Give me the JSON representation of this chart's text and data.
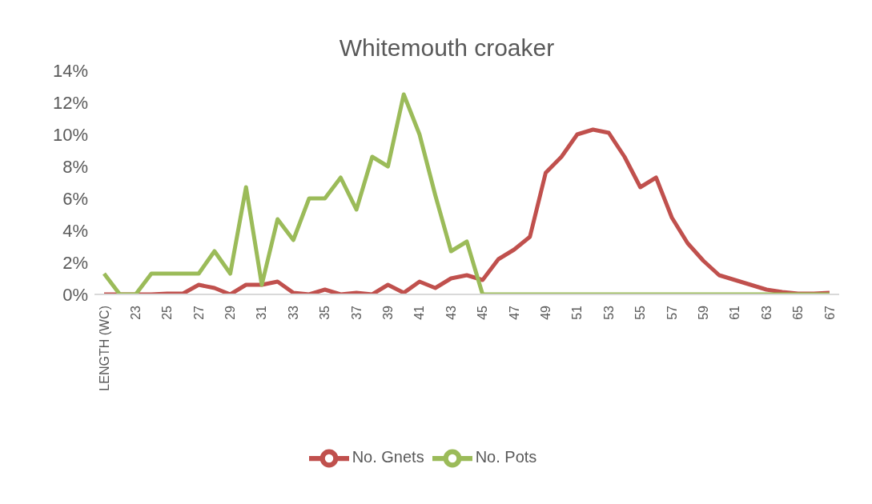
{
  "chart_data": {
    "type": "line",
    "title": "Whitemouth croaker",
    "categories": [
      "LENGTH (WC)",
      null,
      "23",
      null,
      "25",
      null,
      "27",
      null,
      "29",
      null,
      "31",
      null,
      "33",
      null,
      "35",
      null,
      "37",
      null,
      "39",
      null,
      "41",
      null,
      "43",
      null,
      "45",
      null,
      "47",
      null,
      "49",
      null,
      "51",
      null,
      "53",
      null,
      "55",
      null,
      "57",
      null,
      "59",
      null,
      "61",
      null,
      "63",
      null,
      "65",
      null,
      "67"
    ],
    "series": [
      {
        "name": "No. Gnets",
        "color": "#c0504d",
        "values": [
          0,
          0,
          0,
          0,
          0.05,
          0.05,
          0.6,
          0.4,
          0,
          0.6,
          0.6,
          0.8,
          0.1,
          0,
          0.3,
          0,
          0.1,
          0,
          0.6,
          0.1,
          0.8,
          0.4,
          1.0,
          1.2,
          0.9,
          2.2,
          2.8,
          3.6,
          7.6,
          8.6,
          10.0,
          10.3,
          10.1,
          8.6,
          6.7,
          7.3,
          4.8,
          3.2,
          2.1,
          1.2,
          0.9,
          0.6,
          0.3,
          0.15,
          0.05,
          0.05,
          0.1
        ]
      },
      {
        "name": "No. Pots",
        "color": "#9bbb59",
        "values": [
          1.3,
          0,
          0,
          1.3,
          1.3,
          1.3,
          1.3,
          2.7,
          1.3,
          6.7,
          0.6,
          4.7,
          3.4,
          6.0,
          6.0,
          7.3,
          5.3,
          8.6,
          8.0,
          12.5,
          10.0,
          6.2,
          2.7,
          3.3,
          0,
          0,
          0,
          0,
          0,
          0,
          0,
          0,
          0,
          0,
          0,
          0,
          0,
          0,
          0,
          0,
          0,
          0,
          0,
          0,
          0,
          0,
          0
        ]
      }
    ],
    "ylim": [
      0,
      14
    ],
    "yticks": [
      {
        "value": 0,
        "label": "0%"
      },
      {
        "value": 2,
        "label": "2%"
      },
      {
        "value": 4,
        "label": "4%"
      },
      {
        "value": 6,
        "label": "6%"
      },
      {
        "value": 8,
        "label": "8%"
      },
      {
        "value": 10,
        "label": "10%"
      },
      {
        "value": 12,
        "label": "12%"
      },
      {
        "value": 14,
        "label": "14%"
      }
    ],
    "grid": false,
    "legend": "bottom",
    "marker": "none",
    "line_style": "solid"
  }
}
